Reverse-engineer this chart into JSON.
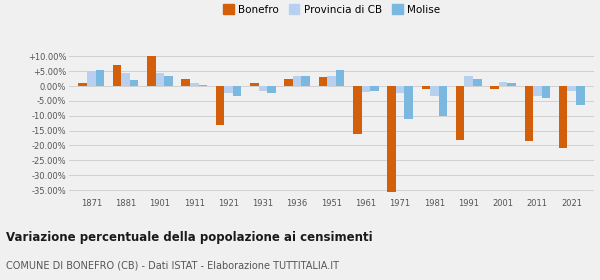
{
  "years": [
    1871,
    1881,
    1901,
    1911,
    1921,
    1931,
    1936,
    1951,
    1961,
    1971,
    1981,
    1991,
    2001,
    2011,
    2021
  ],
  "bonefro": [
    1.0,
    7.0,
    10.0,
    2.5,
    -13.0,
    1.0,
    2.5,
    3.0,
    -16.0,
    -35.5,
    -1.0,
    -18.0,
    -1.0,
    -18.5,
    -21.0
  ],
  "provincia_cb": [
    5.0,
    4.5,
    4.5,
    1.0,
    -2.5,
    -1.5,
    3.5,
    3.5,
    -2.0,
    -2.5,
    -3.5,
    3.5,
    1.2,
    -3.5,
    -1.5
  ],
  "molise": [
    5.5,
    2.0,
    3.5,
    0.5,
    -3.5,
    -2.5,
    3.5,
    5.5,
    -1.5,
    -11.0,
    -10.0,
    2.5,
    1.0,
    -4.0,
    -6.5
  ],
  "bonefro_color": "#d45f0a",
  "provincia_color": "#b8d0f0",
  "molise_color": "#7ab8e0",
  "title": "Variazione percentuale della popolazione ai censimenti",
  "subtitle": "COMUNE DI BONEFRO (CB) - Dati ISTAT - Elaborazione TUTTITALIA.IT",
  "ylim": [
    -37,
    12
  ],
  "yticks": [
    -35.0,
    -30.0,
    -25.0,
    -20.0,
    -15.0,
    -10.0,
    -5.0,
    0.0,
    5.0,
    10.0
  ],
  "ytick_labels": [
    "-35.00%",
    "-30.00%",
    "-25.00%",
    "-20.00%",
    "-15.00%",
    "-10.00%",
    "-5.00%",
    "0.00%",
    "+5.00%",
    "+10.00%"
  ],
  "bg_color": "#f0f0f0",
  "bar_width": 0.25,
  "legend_labels": [
    "Bonefro",
    "Provincia di CB",
    "Molise"
  ]
}
